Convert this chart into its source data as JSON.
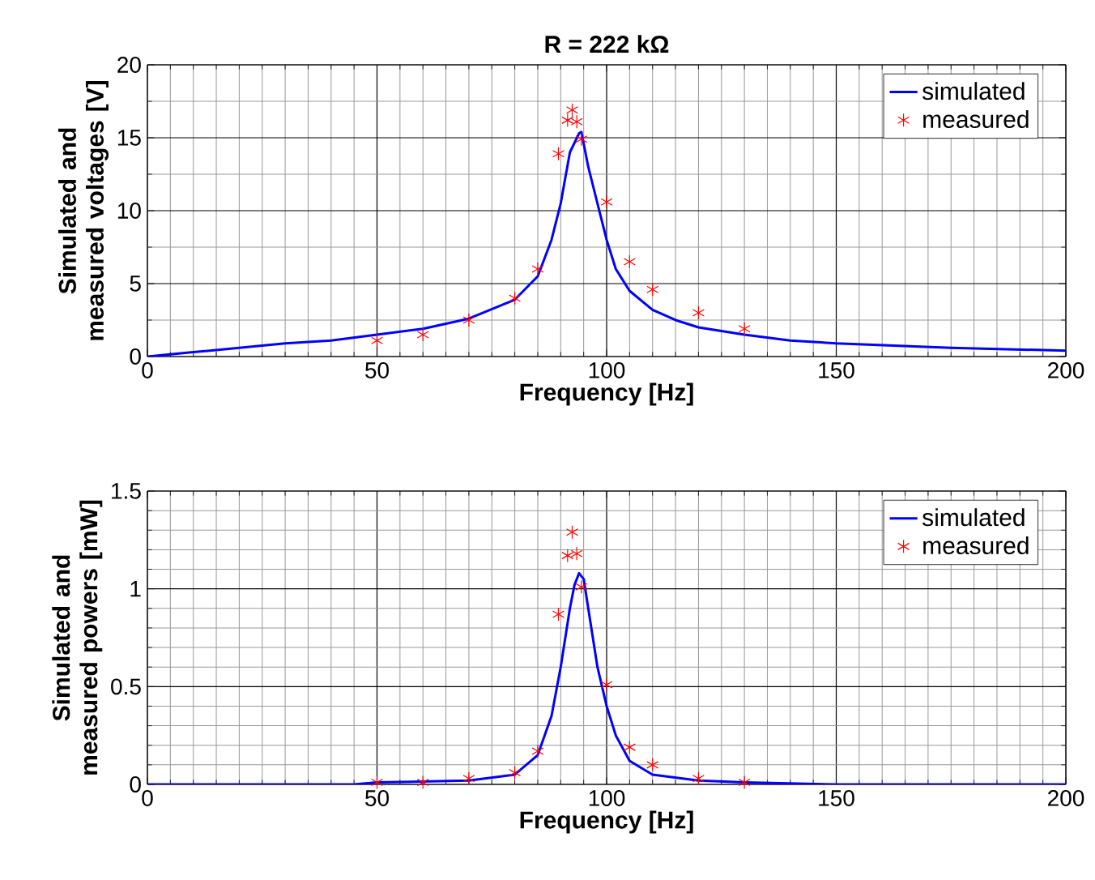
{
  "chart_data": [
    {
      "type": "line",
      "title": "R = 222 kΩ",
      "xlabel": "Frequency [Hz]",
      "ylabel": "Simulated and measured voltages [V]",
      "xlim": [
        0,
        200
      ],
      "ylim": [
        0,
        20
      ],
      "xticks": [
        0,
        50,
        100,
        150,
        200
      ],
      "yticks": [
        0,
        5,
        10,
        15,
        20
      ],
      "grid": true,
      "legend": "top right",
      "series": [
        {
          "name": "simulated",
          "color": "#0000ff",
          "line_style": "solid",
          "marker": "none",
          "x": [
            0,
            10,
            20,
            30,
            40,
            50,
            60,
            70,
            80,
            85,
            88,
            90,
            92,
            94,
            94.5,
            96,
            98,
            100,
            102,
            105,
            110,
            115,
            120,
            130,
            140,
            150,
            175,
            200
          ],
          "values": [
            0,
            0.3,
            0.6,
            0.9,
            1.1,
            1.5,
            1.9,
            2.6,
            3.9,
            5.5,
            8,
            10.5,
            14,
            15.3,
            15.4,
            13,
            10.5,
            8,
            6,
            4.5,
            3.2,
            2.5,
            2,
            1.5,
            1.1,
            0.9,
            0.6,
            0.4
          ]
        },
        {
          "name": "measured",
          "type": "scatter",
          "color": "#ff0000",
          "marker": "cross",
          "x": [
            50,
            60,
            70,
            80,
            85,
            89.5,
            91.5,
            92.5,
            93.5,
            94.5,
            100,
            105,
            110,
            120,
            130
          ],
          "values": [
            1.1,
            1.5,
            2.5,
            4.0,
            6.0,
            13.9,
            16.2,
            16.9,
            16.1,
            14.9,
            10.6,
            6.5,
            4.6,
            3.0,
            1.9
          ]
        }
      ]
    },
    {
      "type": "line",
      "xlabel": "Frequency [Hz]",
      "ylabel": "Simulated and measured powers [mW]",
      "xlim": [
        0,
        200
      ],
      "ylim": [
        0,
        1.5
      ],
      "xticks": [
        0,
        50,
        100,
        150,
        200
      ],
      "yticks": [
        0,
        0.5,
        1,
        1.5
      ],
      "grid": true,
      "legend": "top right",
      "series": [
        {
          "name": "simulated",
          "color": "#0000ff",
          "line_style": "solid",
          "marker": "none",
          "x": [
            0,
            45,
            50,
            70,
            80,
            85,
            88,
            90,
            92,
            93,
            94,
            95,
            96,
            98,
            100,
            102,
            105,
            110,
            120,
            130,
            150,
            200
          ],
          "values": [
            0,
            0,
            0.01,
            0.02,
            0.05,
            0.15,
            0.35,
            0.6,
            0.9,
            1.02,
            1.08,
            1.05,
            0.9,
            0.6,
            0.4,
            0.25,
            0.12,
            0.05,
            0.02,
            0.01,
            0,
            0
          ]
        },
        {
          "name": "measured",
          "type": "scatter",
          "color": "#ff0000",
          "marker": "cross",
          "x": [
            50,
            60,
            70,
            80,
            85,
            89.5,
            91.5,
            92.5,
            93.5,
            94.5,
            100,
            105,
            110,
            120,
            130
          ],
          "values": [
            0.01,
            0.01,
            0.03,
            0.06,
            0.17,
            0.87,
            1.17,
            1.29,
            1.18,
            1.01,
            0.51,
            0.19,
            0.1,
            0.03,
            0.01
          ]
        }
      ]
    }
  ]
}
